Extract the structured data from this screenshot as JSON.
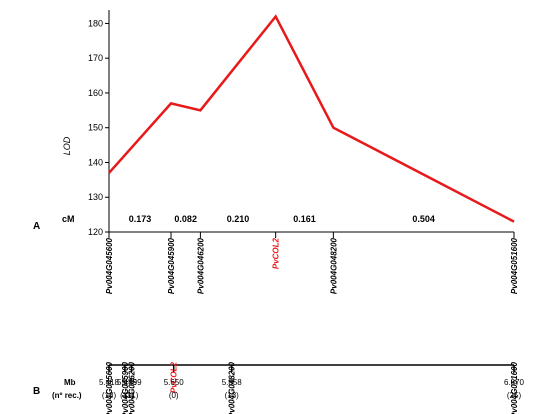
{
  "chart_data": {
    "type": "line",
    "panel_a": {
      "panel_label": "A",
      "ylabel": "LOD",
      "xunit_label": "cM",
      "ylim": [
        120,
        183
      ],
      "yticks": [
        120,
        130,
        140,
        150,
        160,
        170,
        180
      ],
      "line_color": "#e8191a",
      "x": [
        0,
        0.173,
        0.255,
        0.465,
        0.626,
        1.13
      ],
      "lod": [
        137,
        157,
        155,
        182,
        150,
        123
      ],
      "interval_labels": [
        "0.173",
        "0.082",
        "0.210",
        "0.161",
        "0.504"
      ],
      "markers": [
        {
          "name": "Pv004G045600",
          "cm": 0,
          "color": "#000000"
        },
        {
          "name": "Pv004G045900",
          "cm": 0.173,
          "color": "#000000"
        },
        {
          "name": "Pv004G046200",
          "cm": 0.255,
          "color": "#000000"
        },
        {
          "name": "PvCOL2",
          "cm": 0.465,
          "color": "#e8191a"
        },
        {
          "name": "Pv004G048200",
          "cm": 0.626,
          "color": "#000000"
        },
        {
          "name": "Pv004G051600",
          "cm": 1.13,
          "color": "#000000"
        }
      ]
    },
    "panel_b": {
      "panel_label": "B",
      "axis_label_1": "Mb",
      "axis_label_2": "(nº rec.)",
      "mb_range": [
        5.418,
        6.87
      ],
      "markers": [
        {
          "name": "Pv004G045600",
          "mb": 5.418,
          "mb_label": "5.418",
          "rec": "(18)",
          "color": "#000000"
        },
        {
          "name": "Pv004G045900",
          "mb": 5.475,
          "mb_label": "5.475",
          "rec": "(11)",
          "color": "#000000"
        },
        {
          "name": "Pv004G046200",
          "mb": 5.499,
          "mb_label": "5.499",
          "rec": "(11)",
          "color": "#000000"
        },
        {
          "name": "PvCOL2",
          "mb": 5.65,
          "mb_label": "5.650",
          "rec": "(0)",
          "color": "#e8191a"
        },
        {
          "name": "Pv004G048200",
          "mb": 5.858,
          "mb_label": "5.858",
          "rec": "(13)",
          "color": "#000000"
        },
        {
          "name": "Pv004G051600",
          "mb": 6.87,
          "mb_label": "6.870",
          "rec": "(25)",
          "color": "#000000"
        }
      ]
    }
  }
}
